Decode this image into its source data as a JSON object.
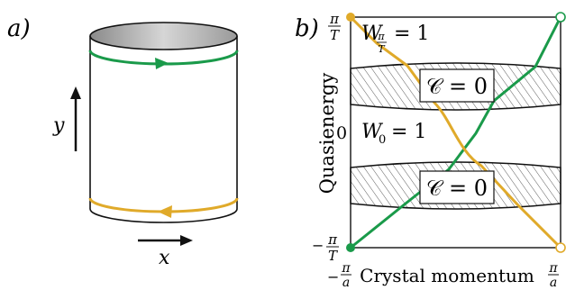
{
  "panel_a": {
    "label": "a)",
    "y_label": "y",
    "x_label": "x",
    "colors": {
      "green": "#1a9a4a",
      "orange": "#e0aa2a"
    }
  },
  "panel_b": {
    "label": "b)",
    "ylabel": "Quasienergy",
    "xlabel": "Crystal momentum",
    "tick_top": {
      "num": "π",
      "den": "T"
    },
    "tick_zero": "0",
    "tick_bottom": {
      "sign": "−",
      "num": "π",
      "den": "T"
    },
    "tick_left": {
      "sign": "−",
      "num": "π",
      "den": "a"
    },
    "tick_right": {
      "num": "π",
      "den": "a"
    },
    "winding_top": {
      "text": "W",
      "sub_num": "π",
      "sub_den": "T",
      "rhs": "= 1"
    },
    "winding_mid": {
      "text": "W",
      "sub": "0",
      "rhs": "= 1"
    },
    "chern_upper": "𝒞 = 0",
    "chern_lower": "𝒞 = 0"
  }
}
